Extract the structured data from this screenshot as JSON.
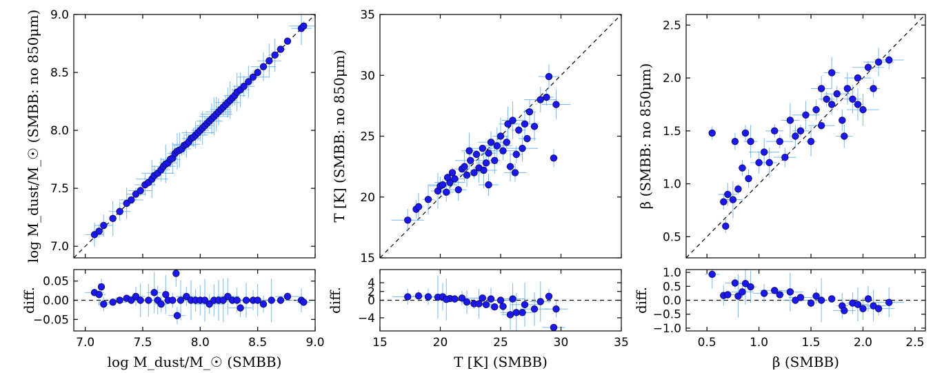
{
  "chart_data": [
    {
      "type": "scatter",
      "xlabel": "log M_dust/M_☉ (SMBB)",
      "ylabel": "log M_dust/M_☉ (SMBB: no 850μm)",
      "xlim": [
        6.9,
        9.0
      ],
      "ylim": [
        6.9,
        9.0
      ],
      "xticks": [
        "7.0",
        "7.5",
        "8.0",
        "8.5",
        "9.0"
      ],
      "yticks": [
        "7.0",
        "7.5",
        "8.0",
        "8.5",
        "9.0"
      ],
      "reference_line": "y = x (dashed)",
      "points": [
        [
          7.08,
          7.1
        ],
        [
          7.12,
          7.13
        ],
        [
          7.16,
          7.18
        ],
        [
          7.24,
          7.24
        ],
        [
          7.3,
          7.3
        ],
        [
          7.36,
          7.37
        ],
        [
          7.4,
          7.4
        ],
        [
          7.44,
          7.45
        ],
        [
          7.48,
          7.48
        ],
        [
          7.52,
          7.53
        ],
        [
          7.55,
          7.55
        ],
        [
          7.58,
          7.58
        ],
        [
          7.6,
          7.61
        ],
        [
          7.63,
          7.63
        ],
        [
          7.66,
          7.66
        ],
        [
          7.68,
          7.69
        ],
        [
          7.7,
          7.71
        ],
        [
          7.72,
          7.72
        ],
        [
          7.74,
          7.75
        ],
        [
          7.76,
          7.76
        ],
        [
          7.78,
          7.8
        ],
        [
          7.8,
          7.82
        ],
        [
          7.82,
          7.83
        ],
        [
          7.84,
          7.84
        ],
        [
          7.86,
          7.87
        ],
        [
          7.88,
          7.88
        ],
        [
          7.9,
          7.9
        ],
        [
          7.92,
          7.93
        ],
        [
          7.94,
          7.94
        ],
        [
          7.96,
          7.96
        ],
        [
          7.98,
          7.98
        ],
        [
          8.0,
          8.0
        ],
        [
          8.02,
          8.02
        ],
        [
          8.04,
          8.04
        ],
        [
          8.06,
          8.06
        ],
        [
          8.08,
          8.08
        ],
        [
          8.1,
          8.1
        ],
        [
          8.12,
          8.12
        ],
        [
          8.14,
          8.14
        ],
        [
          8.16,
          8.16
        ],
        [
          8.18,
          8.18
        ],
        [
          8.2,
          8.2
        ],
        [
          8.22,
          8.22
        ],
        [
          8.24,
          8.24
        ],
        [
          8.26,
          8.26
        ],
        [
          8.28,
          8.28
        ],
        [
          8.3,
          8.3
        ],
        [
          8.32,
          8.33
        ],
        [
          8.35,
          8.35
        ],
        [
          8.38,
          8.38
        ],
        [
          8.42,
          8.42
        ],
        [
          8.46,
          8.46
        ],
        [
          8.5,
          8.5
        ],
        [
          8.55,
          8.55
        ],
        [
          8.6,
          8.6
        ],
        [
          8.65,
          8.65
        ],
        [
          8.7,
          8.7
        ],
        [
          8.76,
          8.77
        ],
        [
          8.88,
          8.88
        ],
        [
          8.9,
          8.9
        ]
      ]
    },
    {
      "type": "scatter",
      "ylabel": "diff.",
      "xlim": [
        6.9,
        9.0
      ],
      "ylim": [
        -0.08,
        0.08
      ],
      "xticks": [
        "7.0",
        "7.5",
        "8.0",
        "8.5",
        "9.0"
      ],
      "yticks": [
        "−0.05",
        "0.00",
        "0.05"
      ],
      "reference_line": "y = 0 (dashed)",
      "points": [
        [
          7.08,
          0.02
        ],
        [
          7.12,
          0.015
        ],
        [
          7.14,
          0.035
        ],
        [
          7.16,
          -0.01
        ],
        [
          7.24,
          -0.005
        ],
        [
          7.3,
          0.0
        ],
        [
          7.36,
          0.005
        ],
        [
          7.4,
          0.0
        ],
        [
          7.44,
          0.01
        ],
        [
          7.48,
          0.0
        ],
        [
          7.55,
          0.0
        ],
        [
          7.6,
          0.02
        ],
        [
          7.63,
          0.0
        ],
        [
          7.66,
          -0.01
        ],
        [
          7.7,
          0.015
        ],
        [
          7.72,
          0.0
        ],
        [
          7.76,
          0.0
        ],
        [
          7.79,
          0.07
        ],
        [
          7.8,
          -0.04
        ],
        [
          7.83,
          0.0
        ],
        [
          7.88,
          0.01
        ],
        [
          7.92,
          0.0
        ],
        [
          7.96,
          0.0
        ],
        [
          8.0,
          0.0
        ],
        [
          8.04,
          0.0
        ],
        [
          8.08,
          -0.01
        ],
        [
          8.12,
          0.0
        ],
        [
          8.16,
          0.0
        ],
        [
          8.2,
          0.0
        ],
        [
          8.24,
          0.01
        ],
        [
          8.28,
          0.0
        ],
        [
          8.32,
          0.0
        ],
        [
          8.35,
          -0.02
        ],
        [
          8.4,
          0.0
        ],
        [
          8.46,
          0.0
        ],
        [
          8.5,
          0.0
        ],
        [
          8.55,
          -0.01
        ],
        [
          8.62,
          0.0
        ],
        [
          8.7,
          0.0
        ],
        [
          8.76,
          0.01
        ],
        [
          8.88,
          0.0
        ],
        [
          8.9,
          -0.005
        ]
      ]
    },
    {
      "type": "scatter",
      "xlabel": "T [K] (SMBB)",
      "ylabel": "T [K] (SMBB: no 850μm)",
      "xlim": [
        15,
        35
      ],
      "ylim": [
        15,
        35
      ],
      "xticks": [
        "15",
        "20",
        "25",
        "30",
        "35"
      ],
      "yticks": [
        "15",
        "20",
        "25",
        "30",
        "35"
      ],
      "reference_line": "y = x (dashed)",
      "points": [
        [
          17.3,
          18.1
        ],
        [
          18.0,
          19.0
        ],
        [
          18.2,
          19.2
        ],
        [
          19.0,
          19.8
        ],
        [
          19.8,
          20.5
        ],
        [
          20.0,
          20.9
        ],
        [
          20.2,
          21.0
        ],
        [
          20.5,
          20.4
        ],
        [
          20.8,
          21.2
        ],
        [
          21.0,
          22.0
        ],
        [
          21.2,
          21.5
        ],
        [
          21.5,
          20.6
        ],
        [
          21.8,
          22.3
        ],
        [
          22.0,
          22.5
        ],
        [
          22.2,
          21.8
        ],
        [
          22.5,
          23.0
        ],
        [
          22.8,
          22.0
        ],
        [
          23.0,
          23.5
        ],
        [
          23.2,
          22.4
        ],
        [
          23.5,
          24.0
        ],
        [
          23.8,
          22.8
        ],
        [
          24.0,
          23.6
        ],
        [
          24.2,
          24.5
        ],
        [
          24.5,
          23.0
        ],
        [
          24.7,
          24.2
        ],
        [
          25.0,
          25.0
        ],
        [
          25.2,
          23.8
        ],
        [
          25.5,
          24.5
        ],
        [
          25.8,
          22.5
        ],
        [
          26.0,
          26.3
        ],
        [
          26.3,
          23.5
        ],
        [
          26.5,
          25.5
        ],
        [
          26.8,
          24.0
        ],
        [
          27.0,
          26.0
        ],
        [
          27.4,
          27.0
        ],
        [
          27.8,
          25.8
        ],
        [
          28.3,
          28.0
        ],
        [
          28.8,
          28.2
        ],
        [
          29.0,
          29.9
        ],
        [
          29.4,
          23.2
        ],
        [
          29.6,
          27.6
        ],
        [
          24.0,
          21.0
        ],
        [
          26.2,
          22.0
        ],
        [
          20.6,
          21.6
        ],
        [
          22.4,
          23.8
        ],
        [
          23.6,
          22.2
        ],
        [
          25.6,
          26.0
        ],
        [
          27.2,
          24.8
        ]
      ]
    },
    {
      "type": "scatter",
      "ylabel": "diff.",
      "xlim": [
        15,
        35
      ],
      "ylim": [
        -7,
        7
      ],
      "xticks": [
        "15",
        "20",
        "25",
        "30",
        "35"
      ],
      "yticks": [
        "−4",
        "0",
        "2",
        "4"
      ],
      "reference_line": "y = 0 (dashed)",
      "points": [
        [
          17.3,
          0.8
        ],
        [
          18.2,
          1.0
        ],
        [
          19.0,
          0.8
        ],
        [
          19.8,
          0.7
        ],
        [
          20.2,
          0.8
        ],
        [
          20.8,
          0.4
        ],
        [
          21.2,
          0.3
        ],
        [
          21.8,
          0.5
        ],
        [
          22.2,
          -0.4
        ],
        [
          22.8,
          -0.8
        ],
        [
          23.2,
          -0.8
        ],
        [
          23.8,
          -1.0
        ],
        [
          24.2,
          0.3
        ],
        [
          24.5,
          -1.5
        ],
        [
          25.0,
          0.0
        ],
        [
          25.2,
          -1.4
        ],
        [
          25.8,
          -3.3
        ],
        [
          26.3,
          -2.8
        ],
        [
          26.8,
          -2.8
        ],
        [
          27.0,
          -1.0
        ],
        [
          27.8,
          -2.0
        ],
        [
          28.3,
          -0.3
        ],
        [
          29.0,
          0.9
        ],
        [
          29.4,
          -6.2
        ],
        [
          29.6,
          -2.0
        ],
        [
          20.5,
          0.2
        ],
        [
          23.5,
          0.5
        ],
        [
          26.0,
          0.3
        ]
      ]
    },
    {
      "type": "scatter",
      "xlabel": "β (SMBB)",
      "ylabel": "β (SMBB: no 850μm)",
      "xlim": [
        0.3,
        2.6
      ],
      "ylim": [
        0.3,
        2.6
      ],
      "xticks": [
        "0.5",
        "1.0",
        "1.5",
        "2.0",
        "2.5"
      ],
      "yticks": [
        "0.5",
        "1.0",
        "1.5",
        "2.0",
        "2.5"
      ],
      "reference_line": "y = x (dashed)",
      "points": [
        [
          0.55,
          1.48
        ],
        [
          0.66,
          0.83
        ],
        [
          0.68,
          0.6
        ],
        [
          0.7,
          0.9
        ],
        [
          0.75,
          0.85
        ],
        [
          0.77,
          1.4
        ],
        [
          0.8,
          0.95
        ],
        [
          0.84,
          1.15
        ],
        [
          0.87,
          1.48
        ],
        [
          0.9,
          1.05
        ],
        [
          0.92,
          1.4
        ],
        [
          1.0,
          1.2
        ],
        [
          1.05,
          1.3
        ],
        [
          1.1,
          1.2
        ],
        [
          1.15,
          1.5
        ],
        [
          1.2,
          1.4
        ],
        [
          1.25,
          1.25
        ],
        [
          1.3,
          1.6
        ],
        [
          1.35,
          1.45
        ],
        [
          1.4,
          1.5
        ],
        [
          1.45,
          1.65
        ],
        [
          1.5,
          1.4
        ],
        [
          1.55,
          1.7
        ],
        [
          1.6,
          1.55
        ],
        [
          1.65,
          1.8
        ],
        [
          1.7,
          1.75
        ],
        [
          1.75,
          1.85
        ],
        [
          1.8,
          1.6
        ],
        [
          1.82,
          1.45
        ],
        [
          1.85,
          1.9
        ],
        [
          1.9,
          1.8
        ],
        [
          1.95,
          2.0
        ],
        [
          2.0,
          1.7
        ],
        [
          2.05,
          2.1
        ],
        [
          2.1,
          1.9
        ],
        [
          2.15,
          2.15
        ],
        [
          2.25,
          2.17
        ],
        [
          1.7,
          2.05
        ],
        [
          1.95,
          1.75
        ],
        [
          1.6,
          1.9
        ]
      ]
    },
    {
      "type": "scatter",
      "ylabel": "diff.",
      "xlim": [
        0.3,
        2.6
      ],
      "ylim": [
        -1.1,
        1.1
      ],
      "xticks": [
        "0.5",
        "1.0",
        "1.5",
        "2.0",
        "2.5"
      ],
      "yticks": [
        "−1.0",
        "−0.5",
        "0.0",
        "0.5",
        "1.0"
      ],
      "reference_line": "y = 0 (dashed)",
      "points": [
        [
          0.55,
          0.93
        ],
        [
          0.66,
          0.17
        ],
        [
          0.7,
          0.2
        ],
        [
          0.77,
          0.62
        ],
        [
          0.8,
          0.15
        ],
        [
          0.84,
          0.3
        ],
        [
          0.87,
          0.6
        ],
        [
          0.92,
          0.48
        ],
        [
          1.05,
          0.25
        ],
        [
          1.15,
          0.35
        ],
        [
          1.2,
          0.2
        ],
        [
          1.3,
          0.3
        ],
        [
          1.4,
          0.1
        ],
        [
          1.5,
          -0.1
        ],
        [
          1.6,
          0.0
        ],
        [
          1.7,
          0.05
        ],
        [
          1.8,
          -0.2
        ],
        [
          1.82,
          -0.37
        ],
        [
          1.9,
          -0.1
        ],
        [
          2.0,
          -0.3
        ],
        [
          2.05,
          0.05
        ],
        [
          2.1,
          -0.2
        ],
        [
          2.15,
          -0.3
        ],
        [
          2.25,
          -0.08
        ],
        [
          1.35,
          0.0
        ],
        [
          1.55,
          0.15
        ],
        [
          1.95,
          -0.15
        ]
      ]
    }
  ]
}
